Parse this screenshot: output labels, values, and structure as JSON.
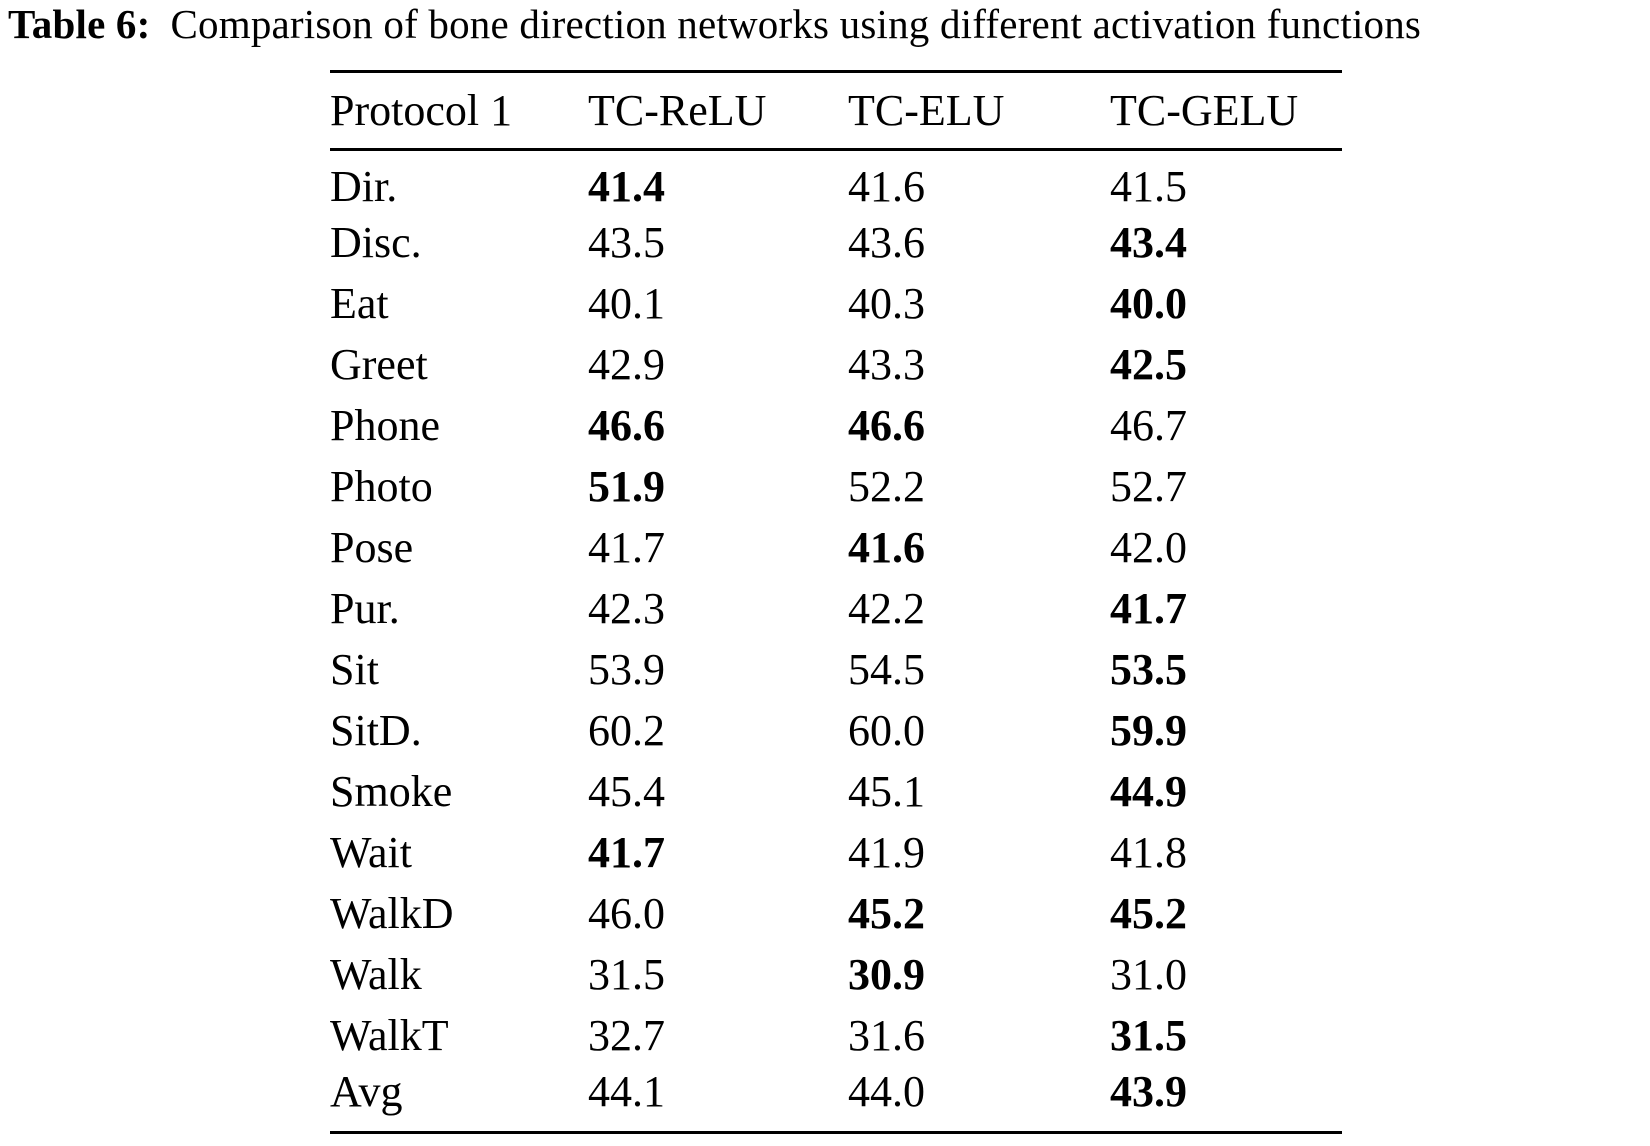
{
  "page": {
    "background_color": "#ffffff",
    "text_color": "#000000"
  },
  "caption": {
    "label": "Table 6:",
    "text": "Comparison of bone direction networks using different activation functions"
  },
  "table": {
    "columns": [
      "Protocol 1",
      "TC-ReLU",
      "TC-ELU",
      "TC-GELU"
    ],
    "rows": [
      {
        "label": "Dir.",
        "values": [
          "41.4",
          "41.6",
          "41.5"
        ],
        "bold": [
          true,
          false,
          false
        ]
      },
      {
        "label": "Disc.",
        "values": [
          "43.5",
          "43.6",
          "43.4"
        ],
        "bold": [
          false,
          false,
          true
        ]
      },
      {
        "label": "Eat",
        "values": [
          "40.1",
          "40.3",
          "40.0"
        ],
        "bold": [
          false,
          false,
          true
        ]
      },
      {
        "label": "Greet",
        "values": [
          "42.9",
          "43.3",
          "42.5"
        ],
        "bold": [
          false,
          false,
          true
        ]
      },
      {
        "label": "Phone",
        "values": [
          "46.6",
          "46.6",
          "46.7"
        ],
        "bold": [
          true,
          true,
          false
        ]
      },
      {
        "label": "Photo",
        "values": [
          "51.9",
          "52.2",
          "52.7"
        ],
        "bold": [
          true,
          false,
          false
        ]
      },
      {
        "label": "Pose",
        "values": [
          "41.7",
          "41.6",
          "42.0"
        ],
        "bold": [
          false,
          true,
          false
        ]
      },
      {
        "label": "Pur.",
        "values": [
          "42.3",
          "42.2",
          "41.7"
        ],
        "bold": [
          false,
          false,
          true
        ]
      },
      {
        "label": "Sit",
        "values": [
          "53.9",
          "54.5",
          "53.5"
        ],
        "bold": [
          false,
          false,
          true
        ]
      },
      {
        "label": "SitD.",
        "values": [
          "60.2",
          "60.0",
          "59.9"
        ],
        "bold": [
          false,
          false,
          true
        ]
      },
      {
        "label": "Smoke",
        "values": [
          "45.4",
          "45.1",
          "44.9"
        ],
        "bold": [
          false,
          false,
          true
        ]
      },
      {
        "label": "Wait",
        "values": [
          "41.7",
          "41.9",
          "41.8"
        ],
        "bold": [
          true,
          false,
          false
        ]
      },
      {
        "label": "WalkD",
        "values": [
          "46.0",
          "45.2",
          "45.2"
        ],
        "bold": [
          false,
          true,
          true
        ]
      },
      {
        "label": "Walk",
        "values": [
          "31.5",
          "30.9",
          "31.0"
        ],
        "bold": [
          false,
          true,
          false
        ]
      },
      {
        "label": "WalkT",
        "values": [
          "32.7",
          "31.6",
          "31.5"
        ],
        "bold": [
          false,
          false,
          true
        ]
      },
      {
        "label": "Avg",
        "values": [
          "44.1",
          "44.0",
          "43.9"
        ],
        "bold": [
          false,
          false,
          true
        ]
      }
    ]
  }
}
